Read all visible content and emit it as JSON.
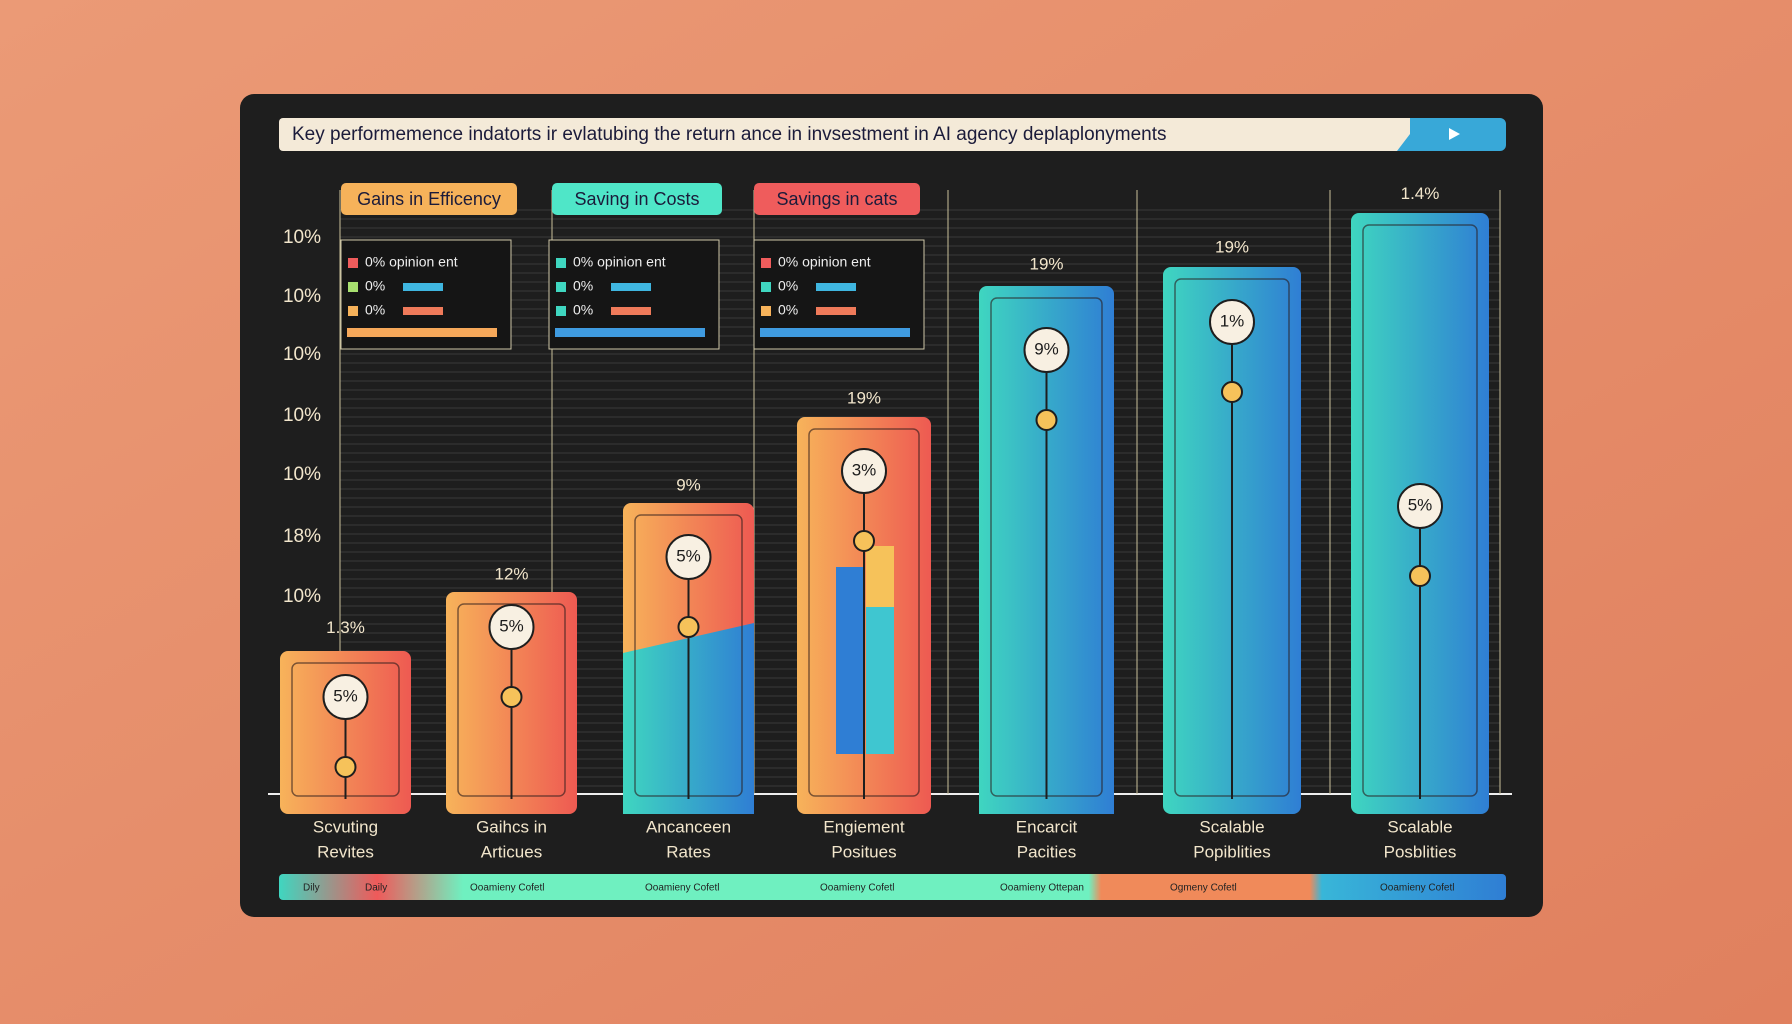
{
  "header": {
    "title": "Key performemence indatorts ir evlatubing the return ance in invsestment in AI agency deplaplonyments"
  },
  "legend": [
    "Gains in Efficency",
    "Saving in Costs",
    "Savings in cats"
  ],
  "axis_labels": [
    "10%",
    "10%",
    "10%",
    "10%",
    "10%",
    "18%",
    "10%"
  ],
  "mini_panels": [
    [
      "0% opinion ent",
      "0%",
      "0%"
    ],
    [
      "0% opinion ent",
      "0%",
      "0%"
    ],
    [
      "0% opinion ent",
      "0%",
      "0%"
    ]
  ],
  "bars": [
    {
      "top_label": "1.3%",
      "inner_label": "5%",
      "label": [
        "Scvuting",
        "Revites"
      ]
    },
    {
      "top_label": "12%",
      "inner_label": "5%",
      "label": [
        "Gaihcs in",
        "Articues"
      ]
    },
    {
      "top_label": "9%",
      "inner_label": "5%",
      "label": [
        "Ancanceen",
        "Rates"
      ]
    },
    {
      "top_label": "19%",
      "inner_label": "3%",
      "label": [
        "Engiement",
        "Positues"
      ]
    },
    {
      "top_label": "19%",
      "inner_label": "9%",
      "label": [
        "Encarcit",
        "Pacities"
      ]
    },
    {
      "top_label": "19%",
      "inner_label": "1%",
      "label": [
        "Scalable",
        "Popiblities"
      ]
    },
    {
      "top_label": "1.4%",
      "inner_label": "5%",
      "label": [
        "Scalable",
        "Posblities"
      ]
    }
  ],
  "footer": [
    "Dily",
    "Daily",
    "Ooamieny Cofetl",
    "Ooamieny Cofetl",
    "Ooamieny Cofetl",
    "Ooamieny Ottepan",
    "Ogmeny Cofetl",
    "Ooamieny Cofetl"
  ]
}
